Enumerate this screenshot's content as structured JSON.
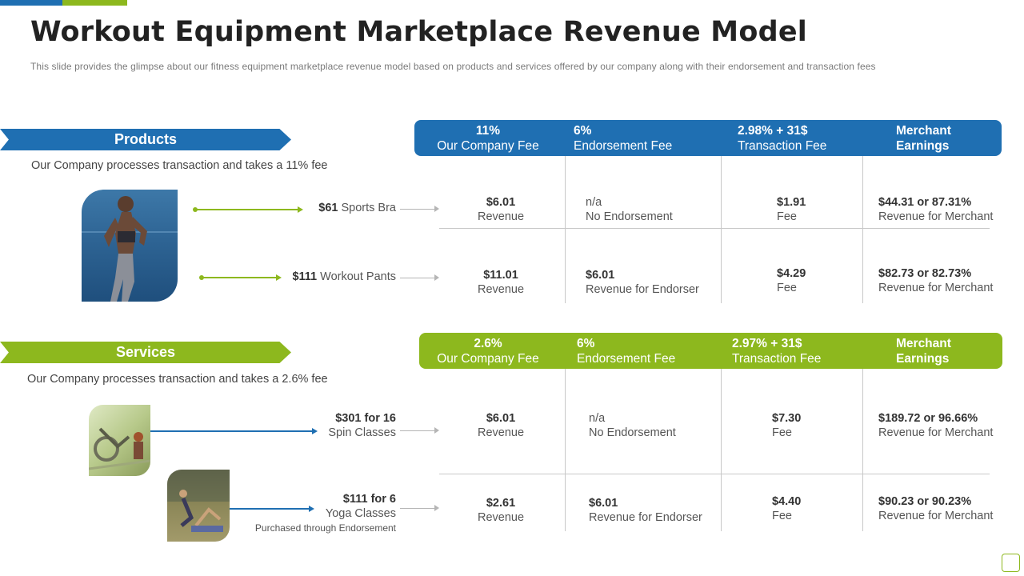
{
  "title": "Workout Equipment Marketplace Revenue Model",
  "subtitle": "This slide provides  the glimpse about our fitness equipment marketplace revenue  model based on products and services offered  by our company along with their endorsement  and transaction fees",
  "colors": {
    "blue": "#1f6fb2",
    "green": "#8db81e"
  },
  "products": {
    "label": "Products",
    "description": "Our Company processes transaction and takes a 11% fee",
    "image": "woman-running-photo",
    "headers": [
      {
        "top": "11%",
        "bottom": "Our Company Fee"
      },
      {
        "top": "6%",
        "bottom": "Endorsement Fee"
      },
      {
        "top": "2.98% + 31$",
        "bottom": "Transaction Fee"
      },
      {
        "top": "Merchant",
        "bottom": "Earnings"
      }
    ],
    "rows": [
      {
        "price": "$61",
        "item": "Sports Bra",
        "company": {
          "value": "$6.01",
          "label": "Revenue"
        },
        "endorsement": {
          "value": "n/a",
          "label": "No Endorsement"
        },
        "transaction": {
          "value": "$1.91",
          "label": "Fee"
        },
        "merchant": {
          "value": "$44.31  or 87.31%",
          "label": "Revenue for Merchant"
        }
      },
      {
        "price": "$111",
        "item": "Workout Pants",
        "company": {
          "value": "$11.01",
          "label": "Revenue"
        },
        "endorsement": {
          "value": "$6.01",
          "label": "Revenue for Endorser"
        },
        "transaction": {
          "value": "$4.29",
          "label": "Fee"
        },
        "merchant": {
          "value": "$82.73  or 82.73%",
          "label": "Revenue for Merchant"
        }
      }
    ]
  },
  "services": {
    "label": "Services",
    "description": "Our Company processes transaction and takes a 2.6% fee",
    "images": [
      "spin-class-photo",
      "yoga-class-photo"
    ],
    "headers": [
      {
        "top": "2.6%",
        "bottom": "Our Company Fee"
      },
      {
        "top": "6%",
        "bottom": "Endorsement Fee"
      },
      {
        "top": "2.97% + 31$",
        "bottom": "Transaction Fee"
      },
      {
        "top": "Merchant",
        "bottom": "Earnings"
      }
    ],
    "rows": [
      {
        "price": "$301  for 16",
        "item": "Spin Classes",
        "note": "",
        "company": {
          "value": "$6.01",
          "label": "Revenue"
        },
        "endorsement": {
          "value": "n/a",
          "label": "No Endorsement"
        },
        "transaction": {
          "value": "$7.30",
          "label": "Fee"
        },
        "merchant": {
          "value": "$189.72  or 96.66%",
          "label": "Revenue for Merchant"
        }
      },
      {
        "price": "$111  for 6",
        "item": "Yoga Classes",
        "note": "Purchased through Endorsement",
        "company": {
          "value": "$2.61",
          "label": "Revenue"
        },
        "endorsement": {
          "value": "$6.01",
          "label": "Revenue for Endorser"
        },
        "transaction": {
          "value": "$4.40",
          "label": "Fee"
        },
        "merchant": {
          "value": "$90.23  or 90.23%",
          "label": "Revenue for Merchant"
        }
      }
    ]
  }
}
